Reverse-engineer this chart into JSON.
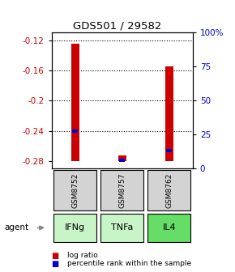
{
  "title": "GDS501 / 29582",
  "samples": [
    "GSM8752",
    "GSM8757",
    "GSM8762"
  ],
  "agents": [
    "IFNg",
    "TNFa",
    "IL4"
  ],
  "agent_colors": [
    "#c8f5c8",
    "#c8f5c8",
    "#66dd66"
  ],
  "ylim_left": [
    -0.29,
    -0.11
  ],
  "ylim_right": [
    0,
    100
  ],
  "yticks_left": [
    -0.28,
    -0.24,
    -0.2,
    -0.16,
    -0.12
  ],
  "yticks_right": [
    0,
    25,
    50,
    75,
    100
  ],
  "bar_bottom": -0.28,
  "red_bar_tops": [
    -0.125,
    -0.272,
    -0.155
  ],
  "blue_marker_vals": [
    -0.24,
    -0.279,
    -0.266
  ],
  "bar_width": 0.18,
  "red_color": "#cc0000",
  "blue_color": "#0000cc",
  "sample_box_color": "#d3d3d3",
  "legend_red_label": "log ratio",
  "legend_blue_label": "percentile rank within the sample",
  "left_label_color": "#cc0000",
  "right_label_color": "#0000cc"
}
